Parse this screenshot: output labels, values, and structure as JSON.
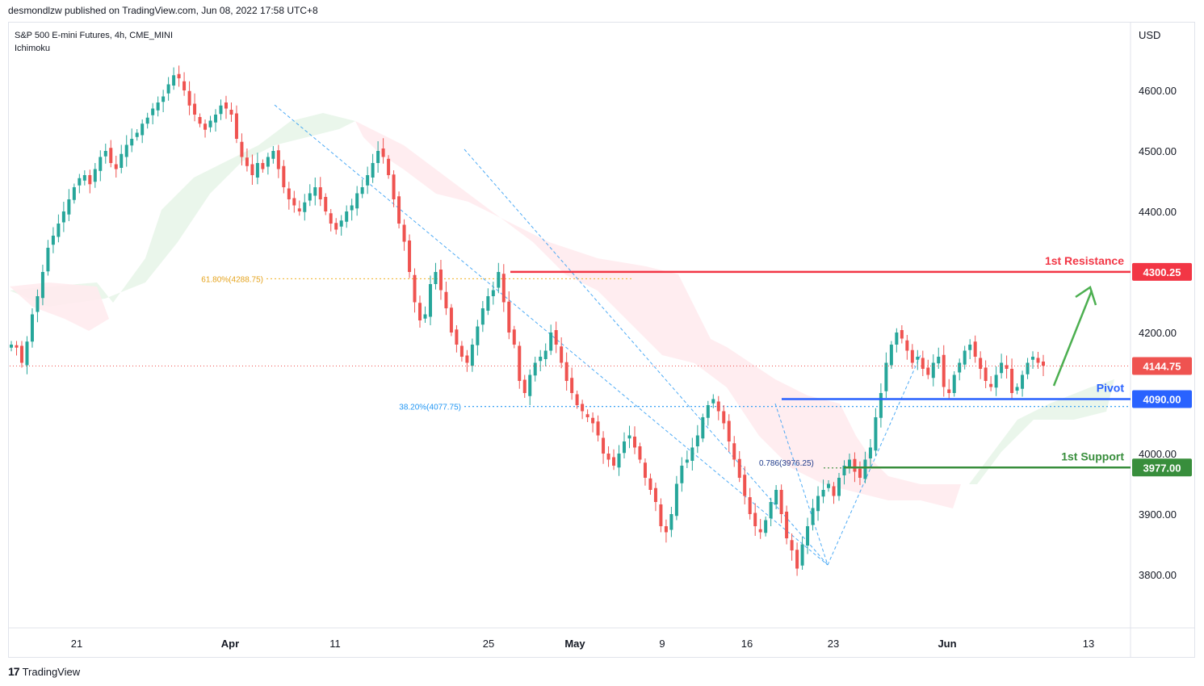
{
  "header": {
    "publisher": "desmondlzw published on TradingView.com, Jun 08, 2022 17:58 UTC+8"
  },
  "legend": {
    "symbol": "S&P 500 E-mini Futures, 4h, CME_MINI",
    "indicator": "Ichimoku"
  },
  "axis": {
    "currency": "USD"
  },
  "footer": {
    "brand": "TradingView",
    "brand_mark": "17"
  },
  "colors": {
    "up": "#26a69a",
    "down": "#ef5350",
    "resistance": "#f23645",
    "pivot": "#2962ff",
    "support": "#388e3c",
    "fib_gold": "#f2b83b",
    "fib_blue": "#2196f3",
    "cloud_green": "#e8f5e9",
    "cloud_red": "#ffebee"
  },
  "chart_data": {
    "type": "candlestick",
    "ylim": [
      3740,
      4690
    ],
    "y_ticks": [
      3800,
      3900,
      4000,
      4100,
      4200,
      4300,
      4400,
      4500,
      4600
    ],
    "y_tick_labels": [
      "3800.00",
      "3900.00",
      "4000.00",
      "",
      "4200.00",
      "",
      "4400.00",
      "4500.00",
      "4600.00"
    ],
    "x_tick_labels": [
      "21",
      "Apr",
      "11",
      "25",
      "May",
      "9",
      "16",
      "23",
      "Jun",
      "13"
    ],
    "bold_x_labels": [
      "Apr",
      "May",
      "Jun"
    ],
    "levels": [
      {
        "name": "1st Resistance",
        "value": 4300.25,
        "label": "4300.25",
        "color": "#f23645"
      },
      {
        "name": "Pivot",
        "value": 4090.0,
        "label": "4090.00",
        "color": "#2962ff"
      },
      {
        "name": "1st Support",
        "value": 3977.0,
        "label": "3977.00",
        "color": "#388e3c"
      }
    ],
    "last_price": {
      "value": 4144.75,
      "label": "4144.75"
    },
    "fib_labels": [
      {
        "text": "61.80%(4288.75)",
        "value": 4288.75
      },
      {
        "text": "38.20%(4077.75)",
        "value": 4077.75
      },
      {
        "text": "0.786(3976.25)",
        "value": 3976.25
      }
    ],
    "price_path": [
      4180,
      4175,
      4150,
      4185,
      4230,
      4260,
      4300,
      4340,
      4360,
      4380,
      4400,
      4420,
      4440,
      4455,
      4460,
      4445,
      4470,
      4490,
      4500,
      4480,
      4470,
      4495,
      4510,
      4520,
      4530,
      4545,
      4555,
      4570,
      4580,
      4590,
      4610,
      4625,
      4620,
      4600,
      4575,
      4560,
      4545,
      4535,
      4550,
      4560,
      4575,
      4570,
      4560,
      4520,
      4490,
      4475,
      4460,
      4480,
      4470,
      4490,
      4500,
      4470,
      4440,
      4420,
      4410,
      4400,
      4415,
      4430,
      4440,
      4420,
      4400,
      4380,
      4370,
      4385,
      4400,
      4410,
      4430,
      4440,
      4460,
      4480,
      4500,
      4490,
      4460,
      4420,
      4380,
      4350,
      4300,
      4250,
      4220,
      4230,
      4280,
      4300,
      4270,
      4240,
      4200,
      4180,
      4160,
      4150,
      4180,
      4210,
      4240,
      4260,
      4270,
      4300,
      4250,
      4200,
      4180,
      4120,
      4100,
      4130,
      4150,
      4160,
      4170,
      4200,
      4180,
      4150,
      4120,
      4100,
      4080,
      4070,
      4060,
      4050,
      4030,
      4000,
      3990,
      3980,
      4000,
      4020,
      4030,
      4010,
      3990,
      3960,
      3940,
      3920,
      3880,
      3870,
      3900,
      3950,
      3980,
      3990,
      4010,
      4030,
      4060,
      4080,
      4090,
      4070,
      4050,
      4020,
      3990,
      3960,
      3930,
      3900,
      3880,
      3870,
      3890,
      3920,
      3940,
      3900,
      3860,
      3840,
      3810,
      3850,
      3880,
      3910,
      3930,
      3940,
      3950,
      3930,
      3960,
      3980,
      3990,
      3970,
      3960,
      3990,
      4010,
      4060,
      4100,
      4150,
      4180,
      4200,
      4190,
      4170,
      4150,
      4160,
      4140,
      4130,
      4150,
      4160,
      4110,
      4100,
      4130,
      4150,
      4170,
      4180,
      4160,
      4140,
      4120,
      4110,
      4130,
      4150,
      4140,
      4100,
      4110,
      4130,
      4150,
      4160,
      4150,
      4145
    ]
  }
}
